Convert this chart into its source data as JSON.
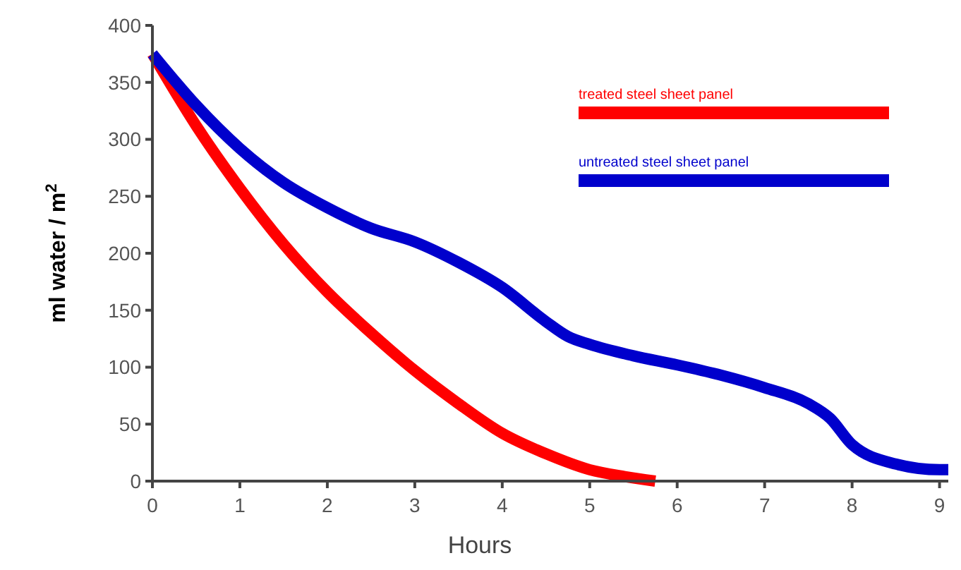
{
  "chart_data": {
    "type": "line",
    "xlabel": "Hours",
    "ylabel": "ml water / m$^{2}$",
    "xlim": [
      0,
      9.1
    ],
    "ylim": [
      0,
      400
    ],
    "xticks": [
      0,
      1,
      2,
      3,
      4,
      5,
      6,
      7,
      8,
      9
    ],
    "yticks": [
      0,
      50,
      100,
      150,
      200,
      250,
      300,
      350,
      400
    ],
    "grid": false,
    "legend": "top right",
    "marker": "none",
    "line_style": "solid",
    "series": [
      {
        "name": "treated steel sheet panel",
        "color": "#ff0000",
        "x": [
          0,
          0.5,
          1,
          1.5,
          2,
          2.5,
          3,
          3.5,
          4,
          4.5,
          5,
          5.4,
          5.75
        ],
        "values": [
          375,
          312,
          257,
          208,
          166,
          130,
          97,
          68,
          42,
          24,
          10,
          4,
          0
        ]
      },
      {
        "name": "untreated steel sheet panel",
        "color": "#0000cc",
        "x": [
          0,
          0.5,
          1,
          1.5,
          2,
          2.5,
          3,
          3.5,
          4,
          4.5,
          4.75,
          5,
          5.5,
          6,
          6.5,
          7,
          7.5,
          7.75,
          8,
          8.5,
          9,
          9.1
        ],
        "values": [
          375,
          330,
          292,
          262,
          240,
          222,
          210,
          192,
          170,
          140,
          127,
          120,
          110,
          102,
          93,
          82,
          68,
          55,
          32,
          15,
          10,
          10
        ]
      }
    ]
  }
}
